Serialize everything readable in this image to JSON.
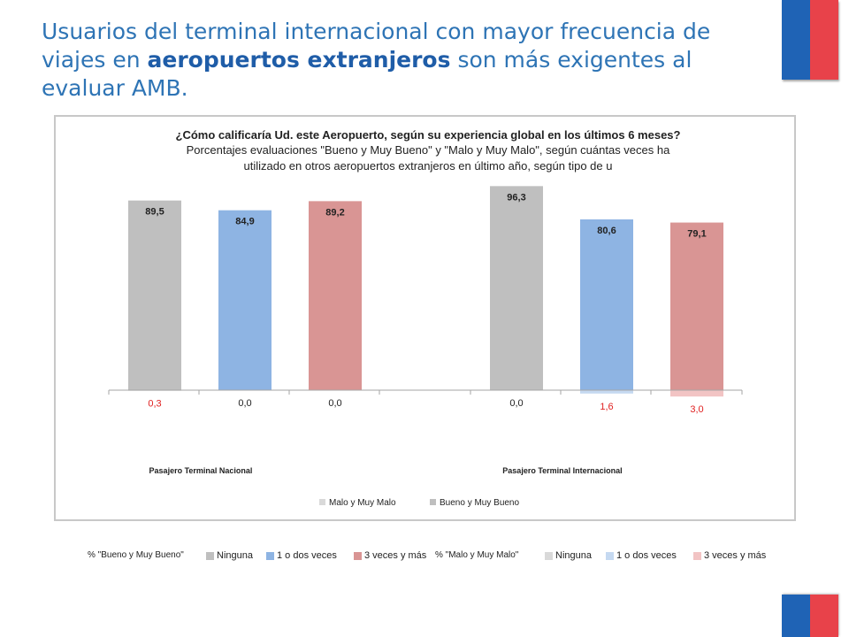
{
  "slide": {
    "title_part1": "Usuarios del terminal internacional con mayor frecuencia de viajes en ",
    "title_bold": "aeropuertos extranjeros",
    "title_part2": " son más exigentes al evaluar AMB."
  },
  "colors": {
    "gris": "#bfbfbf",
    "azul": "#8eb4e3",
    "rojo": "#d99594",
    "gris_claro": "#d9d9d9",
    "azul_claro": "#c5d9f1",
    "rojo_claro": "#f2c4c4",
    "negative_label": "#e02020"
  },
  "chart_data": {
    "type": "bar",
    "title_lines": [
      "¿Cómo calificaría Ud. este Aeropuerto, según su experiencia global en los últimos 6 meses?",
      "Porcentajes evaluaciones \"Bueno y Muy Bueno\" y \"Malo y Muy Malo\",  según cuántas veces ha",
      "utilizado en otros aeropuertos extranjeros en último año, según tipo de u"
    ],
    "categories": [
      "Pasajero Terminal Nacional",
      "Pasajero Terminal Internacional"
    ],
    "series": [
      {
        "name": "Ninguna",
        "bueno": [
          89.5,
          96.3
        ],
        "malo": [
          0.3,
          0.0
        ],
        "bueno_labels": [
          "89,5",
          "96,3"
        ],
        "malo_labels": [
          "0,3",
          "0,0"
        ]
      },
      {
        "name": "1 o dos veces",
        "bueno": [
          84.9,
          80.6
        ],
        "malo": [
          0.0,
          1.6
        ],
        "bueno_labels": [
          "84,9",
          "80,6"
        ],
        "malo_labels": [
          "0,0",
          "1,6"
        ]
      },
      {
        "name": "3 veces y más",
        "bueno": [
          89.2,
          79.1
        ],
        "malo": [
          0.0,
          3.0
        ],
        "bueno_labels": [
          "89,2",
          "79,1"
        ],
        "malo_labels": [
          "0,0",
          "3,0"
        ]
      }
    ],
    "ylim": [
      -5,
      100
    ],
    "grid": false,
    "legend": {
      "position": "bottom",
      "entries": [
        "Malo y Muy Malo",
        "Bueno y Muy Bueno"
      ]
    },
    "secondary_legend": {
      "bueno_header": "% \"Bueno y Muy Bueno\"",
      "malo_header": "% \"Malo y Muy Malo\"",
      "entries": [
        "Ninguna",
        "1 o dos veces",
        "3 veces y más"
      ]
    }
  }
}
